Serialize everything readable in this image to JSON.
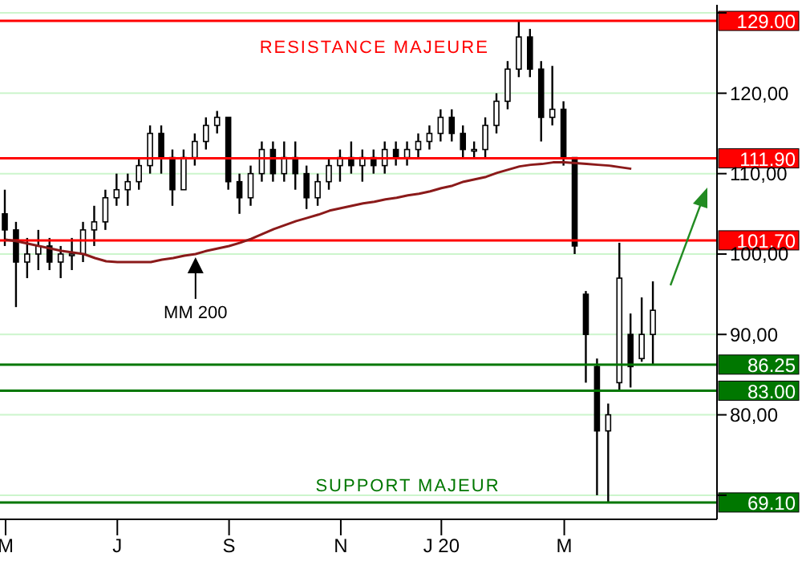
{
  "chart_data": {
    "type": "candlestick",
    "color": "#000000",
    "categories": [
      "M",
      null,
      null,
      null,
      null,
      null,
      null,
      null,
      null,
      null,
      "J",
      null,
      null,
      null,
      null,
      null,
      null,
      null,
      null,
      null,
      "S",
      null,
      null,
      null,
      null,
      null,
      null,
      null,
      null,
      null,
      "N",
      null,
      null,
      null,
      null,
      null,
      null,
      null,
      null,
      "J 20",
      null,
      null,
      null,
      null,
      null,
      null,
      null,
      null,
      null,
      null,
      "M",
      null,
      null,
      null,
      null,
      null,
      null,
      null,
      null
    ],
    "ohlc": [
      [
        105,
        108,
        101,
        103
      ],
      [
        103,
        104,
        93.4,
        99
      ],
      [
        99,
        102,
        97,
        100
      ],
      [
        100,
        103,
        98,
        101
      ],
      [
        101,
        102,
        98,
        99
      ],
      [
        99,
        101,
        97,
        100
      ],
      [
        100,
        102,
        98,
        100
      ],
      [
        100,
        104,
        99,
        103
      ],
      [
        103,
        106,
        101,
        104
      ],
      [
        104,
        108,
        103,
        107
      ],
      [
        107,
        110,
        106,
        108
      ],
      [
        108,
        110,
        106,
        109
      ],
      [
        109,
        112,
        108,
        111
      ],
      [
        111,
        116,
        110,
        115
      ],
      [
        115,
        116,
        110,
        112
      ],
      [
        112,
        113,
        106,
        108
      ],
      [
        108,
        113,
        108,
        112
      ],
      [
        112,
        115,
        111,
        114
      ],
      [
        114,
        117,
        113,
        116
      ],
      [
        116,
        117.8,
        115,
        117
      ],
      [
        117,
        117,
        108,
        109
      ],
      [
        109,
        110,
        105,
        107
      ],
      [
        107,
        111,
        106,
        110
      ],
      [
        110,
        114,
        109,
        113
      ],
      [
        113,
        114,
        109,
        110
      ],
      [
        110,
        114,
        109,
        112
      ],
      [
        112,
        114,
        108,
        110
      ],
      [
        110,
        111,
        105.6,
        107
      ],
      [
        107,
        110,
        106,
        109
      ],
      [
        109,
        112,
        108,
        111
      ],
      [
        111,
        113,
        109,
        112
      ],
      [
        112,
        114,
        110,
        111
      ],
      [
        111,
        113,
        109,
        112
      ],
      [
        112,
        113,
        110,
        111
      ],
      [
        111,
        114,
        110,
        113
      ],
      [
        113,
        114,
        111,
        112
      ],
      [
        112,
        114,
        111,
        113
      ],
      [
        113,
        115,
        112,
        114
      ],
      [
        114,
        116,
        113,
        115
      ],
      [
        115,
        118,
        114,
        117
      ],
      [
        117,
        118,
        114,
        115
      ],
      [
        115,
        116,
        112,
        113
      ],
      [
        113,
        114,
        111.9,
        113
      ],
      [
        113,
        117,
        112,
        116
      ],
      [
        116,
        120,
        115,
        119
      ],
      [
        119,
        124,
        118,
        123
      ],
      [
        123,
        129,
        122,
        127
      ],
      [
        127,
        128,
        122,
        123
      ],
      [
        123,
        124,
        114,
        117
      ],
      [
        117,
        123.4,
        116,
        118
      ],
      [
        118,
        119,
        111,
        112
      ],
      [
        112,
        112,
        100,
        101
      ],
      [
        95,
        95.4,
        84,
        90
      ],
      [
        86,
        87,
        70,
        78
      ],
      [
        78,
        81.4,
        69.1,
        80
      ],
      [
        84,
        101.4,
        83,
        97
      ],
      [
        90,
        92.6,
        83.4,
        86
      ],
      [
        87,
        94.6,
        86.6,
        90
      ],
      [
        90,
        96.6,
        86.25,
        93
      ]
    ],
    "series": [
      {
        "type": "line",
        "color": "#8b1a1a",
        "values": [
          101.8,
          101.6,
          101.3,
          101,
          100.7,
          100.4,
          100.2,
          100,
          99.5,
          99.1,
          99,
          99,
          99,
          99,
          99.3,
          99.5,
          99.8,
          100,
          100.4,
          100.7,
          101,
          101.4,
          101.9,
          102.5,
          103.1,
          103.6,
          104.1,
          104.5,
          104.9,
          105.4,
          105.7,
          106,
          106.3,
          106.5,
          106.8,
          107,
          107.3,
          107.5,
          107.8,
          108.2,
          108.5,
          109,
          109.3,
          109.6,
          110.1,
          110.5,
          110.9,
          111.1,
          111.2,
          111.4,
          111.4,
          111.3,
          111.2,
          111.1,
          111,
          110.8,
          110.6,
          null,
          null
        ]
      }
    ],
    "ylim": [
      67,
      131
    ],
    "yticks": [
      {
        "value": 70,
        "label": null
      },
      {
        "value": 80,
        "label": "80,00"
      },
      {
        "value": 90,
        "label": "90,00"
      },
      {
        "value": 100,
        "label": "100,00"
      },
      {
        "value": 110,
        "label": "110,00"
      },
      {
        "value": 120,
        "label": "120,00"
      },
      {
        "value": 130,
        "label": null
      }
    ],
    "grid": "y",
    "ref_lines": [
      {
        "axis": "y",
        "value": 129,
        "label": "129.00",
        "color": "#ff0000"
      },
      {
        "axis": "y",
        "value": 111.9,
        "label": "111.90",
        "color": "#ff0000"
      },
      {
        "axis": "y",
        "value": 101.7,
        "label": "101.70",
        "color": "#ff0000"
      },
      {
        "axis": "y",
        "value": 86.25,
        "label": "86.25",
        "color": "#007700"
      },
      {
        "axis": "y",
        "value": 83,
        "label": "83.00",
        "color": "#007700"
      },
      {
        "axis": "y",
        "value": 69.1,
        "label": "69.10",
        "color": "#007700"
      }
    ],
    "annotations": [
      {
        "text": "RESISTANCE MAJEURE",
        "y": 129
      },
      {
        "text": "SUPPORT MAJEUR",
        "y": 69.1
      },
      {
        "text": "MM 200",
        "y": 100
      }
    ]
  }
}
